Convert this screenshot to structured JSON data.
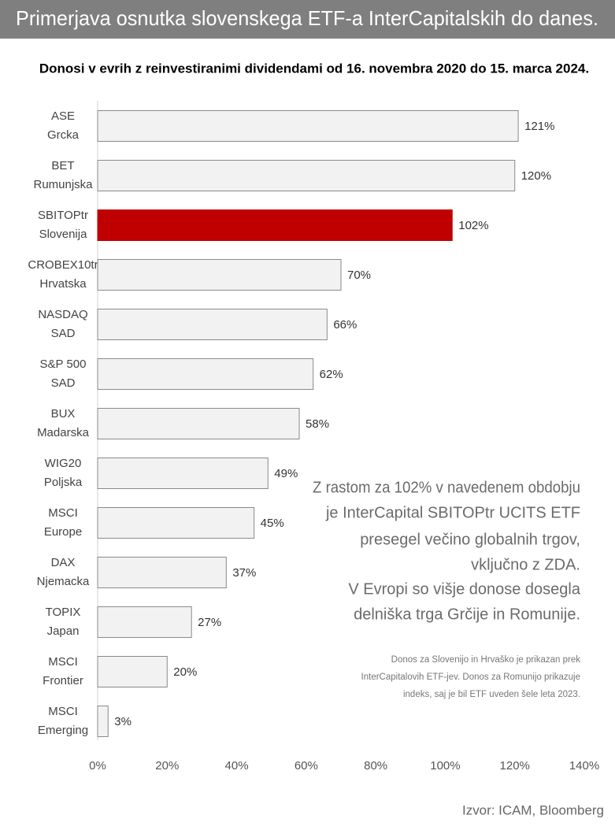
{
  "chart_data": {
    "type": "bar",
    "orientation": "horizontal",
    "title": "Primerjava osnutka slovenskega ETF-a InterCapitalskih do danes.",
    "subtitle": "Donosi v evrih z reinvestiranimi dividendami od 16. novembra 2020 do 15. marca 2024.",
    "categories": [
      [
        "ASE",
        "Grcka"
      ],
      [
        "BET",
        "Rumunjska"
      ],
      [
        "SBITOPtr",
        "Slovenija"
      ],
      [
        "CROBEX10tr",
        "Hrvatska"
      ],
      [
        "NASDAQ",
        "SAD"
      ],
      [
        "S&P 500",
        "SAD"
      ],
      [
        "BUX",
        "Madarska"
      ],
      [
        "WIG20",
        "Poljska"
      ],
      [
        "MSCI",
        "Europe"
      ],
      [
        "DAX",
        "Njemacka"
      ],
      [
        "TOPIX",
        "Japan"
      ],
      [
        "MSCI",
        "Frontier"
      ],
      [
        "MSCI",
        "Emerging"
      ]
    ],
    "values": [
      121,
      120,
      102,
      70,
      66,
      62,
      58,
      49,
      45,
      37,
      27,
      20,
      3
    ],
    "value_labels": [
      "121%",
      "120%",
      "102%",
      "70%",
      "66%",
      "62%",
      "58%",
      "49%",
      "45%",
      "37%",
      "27%",
      "20%",
      "3%"
    ],
    "colors": [
      "#f2f2f2",
      "#f2f2f2",
      "#c00000",
      "#f2f2f2",
      "#f2f2f2",
      "#f2f2f2",
      "#f2f2f2",
      "#f2f2f2",
      "#f2f2f2",
      "#f2f2f2",
      "#f2f2f2",
      "#f2f2f2",
      "#f2f2f2"
    ],
    "xlim": [
      0,
      140
    ],
    "xticks": [
      {
        "value": 0,
        "label": "0%"
      },
      {
        "value": 20,
        "label": "20%"
      },
      {
        "value": 40,
        "label": "40%"
      },
      {
        "value": 60,
        "label": "60%"
      },
      {
        "value": 80,
        "label": "80%"
      },
      {
        "value": 100,
        "label": "100%"
      },
      {
        "value": 120,
        "label": "120%"
      },
      {
        "value": 140,
        "label": "140%"
      }
    ],
    "annotation": [
      "Z rastom za 102% v navedenem obdobju",
      "je InterCapital SBITOPtr UCITS ETF",
      "presegel večino globalnih trgov,",
      "vključno z ZDA.",
      "V Evropi so višje donose dosegla",
      "delniška trga Grčije in Romunije."
    ],
    "footnote": [
      "Donos za Slovenijo in Hrvaško je prikazan prek",
      "InterCapitalovih ETF-jev. Donos za Romunijo prikazuje",
      "indeks, saj je bil ETF uveden šele leta 2023."
    ],
    "source": "Izvor: ICAM, Bloomberg"
  }
}
